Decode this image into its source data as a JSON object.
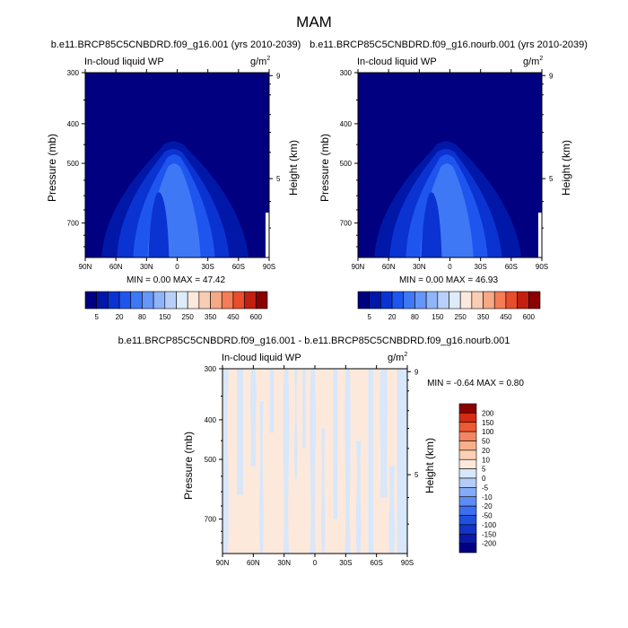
{
  "figure_title": "MAM",
  "palettes": {
    "abs": [
      "#000080",
      "#0017a8",
      "#0a33d2",
      "#1e55ee",
      "#3f78f5",
      "#6696f7",
      "#8fb4f8",
      "#b8d0f9",
      "#ddebfa",
      "#fde9dc",
      "#f9cdb3",
      "#f6a985",
      "#f47c56",
      "#e94d2c",
      "#c21f10",
      "#8b0000"
    ],
    "diff": [
      "#000080",
      "#0a1aa8",
      "#1234c8",
      "#2050e0",
      "#3c6ef0",
      "#5c8cf4",
      "#84abf7",
      "#b3ccf9",
      "#d8e7fa",
      "#fde9db",
      "#fbd0b4",
      "#f8b08a",
      "#f58560",
      "#ee5a34",
      "#d42c14",
      "#8b0000"
    ]
  },
  "panels": [
    {
      "subtitle": "b.e11.BRCP85C5CNBDRD.f09_g16.001 (yrs 2010-2039)",
      "left_label": "In-cloud liquid WP",
      "units": "g/m",
      "units_sup": "2",
      "ylabel": "Pressure (mb)",
      "ylabel_right": "Height (km)",
      "stats": "MIN =   0.00   MAX =  47.42"
    },
    {
      "subtitle": "b.e11.BRCP85C5CNBDRD.f09_g16.nourb.001 (yrs 2010-2039)",
      "left_label": "In-cloud liquid WP",
      "units": "g/m",
      "units_sup": "2",
      "ylabel": "Pressure (mb)",
      "ylabel_right": "Height (km)",
      "stats": "MIN =   0.00   MAX =  46.93"
    },
    {
      "subtitle": "b.e11.BRCP85C5CNBDRD.f09_g16.001 - b.e11.BRCP85C5CNBDRD.f09_g16.nourb.001",
      "left_label": "In-cloud liquid WP",
      "units": "g/m",
      "units_sup": "2",
      "ylabel": "Pressure (mb)",
      "ylabel_right": "Height (km)",
      "stats": "MIN =  -0.64   MAX =   0.80"
    }
  ],
  "chart_data": [
    {
      "type": "heatmap",
      "title": "b.e11.BRCP85C5CNBDRD.f09_g16.001 (yrs 2010-2039)",
      "variable": "In-cloud liquid WP",
      "units": "g/m2",
      "xlabel": "",
      "ylabel": "Pressure (mb)",
      "ylabel_right": "Height (km)",
      "xlim": [
        90,
        -90
      ],
      "ylim_pressure": [
        300,
        850
      ],
      "x_ticks": [
        "90N",
        "60N",
        "30N",
        "0",
        "30S",
        "60S",
        "90S"
      ],
      "x_tick_values": [
        90,
        60,
        30,
        0,
        -30,
        -60,
        -90
      ],
      "y_ticks": [
        "300",
        "400",
        "500",
        "700"
      ],
      "y_tick_values": [
        300,
        400,
        500,
        700
      ],
      "y_ticks_right": [
        "9",
        "5"
      ],
      "y_tick_right_values": [
        9,
        5
      ],
      "colorbar_levels": [
        5,
        10,
        20,
        40,
        80,
        100,
        150,
        200,
        250,
        300,
        350,
        400,
        450,
        500,
        600
      ],
      "colorbar_labels": [
        "5",
        "20",
        "80",
        "150",
        "250",
        "350",
        "450",
        "600"
      ],
      "min": 0.0,
      "max": 47.42
    },
    {
      "type": "heatmap",
      "title": "b.e11.BRCP85C5CNBDRD.f09_g16.nourb.001 (yrs 2010-2039)",
      "variable": "In-cloud liquid WP",
      "units": "g/m2",
      "xlabel": "",
      "ylabel": "Pressure (mb)",
      "ylabel_right": "Height (km)",
      "xlim": [
        90,
        -90
      ],
      "ylim_pressure": [
        300,
        850
      ],
      "x_ticks": [
        "90N",
        "60N",
        "30N",
        "0",
        "30S",
        "60S",
        "90S"
      ],
      "x_tick_values": [
        90,
        60,
        30,
        0,
        -30,
        -60,
        -90
      ],
      "y_ticks": [
        "300",
        "400",
        "500",
        "700"
      ],
      "y_tick_values": [
        300,
        400,
        500,
        700
      ],
      "y_ticks_right": [
        "9",
        "5"
      ],
      "y_tick_right_values": [
        9,
        5
      ],
      "colorbar_levels": [
        5,
        10,
        20,
        40,
        80,
        100,
        150,
        200,
        250,
        300,
        350,
        400,
        450,
        500,
        600
      ],
      "colorbar_labels": [
        "5",
        "20",
        "80",
        "150",
        "250",
        "350",
        "450",
        "600"
      ],
      "min": 0.0,
      "max": 46.93
    },
    {
      "type": "heatmap",
      "title": "b.e11.BRCP85C5CNBDRD.f09_g16.001 - b.e11.BRCP85C5CNBDRD.f09_g16.nourb.001",
      "variable": "In-cloud liquid WP",
      "units": "g/m2",
      "xlabel": "",
      "ylabel": "Pressure (mb)",
      "ylabel_right": "Height (km)",
      "xlim": [
        90,
        -90
      ],
      "ylim_pressure": [
        300,
        850
      ],
      "x_ticks": [
        "90N",
        "60N",
        "30N",
        "0",
        "30S",
        "60S",
        "90S"
      ],
      "x_tick_values": [
        90,
        60,
        30,
        0,
        -30,
        -60,
        -90
      ],
      "y_ticks": [
        "300",
        "400",
        "500",
        "700"
      ],
      "y_tick_values": [
        300,
        400,
        500,
        700
      ],
      "y_ticks_right": [
        "9",
        "5"
      ],
      "y_tick_right_values": [
        9,
        5
      ],
      "colorbar_levels": [
        -200,
        -150,
        -100,
        -50,
        -20,
        -10,
        -5,
        0,
        5,
        10,
        20,
        50,
        100,
        150,
        200
      ],
      "colorbar_labels": [
        "200",
        "150",
        "100",
        "50",
        "20",
        "10",
        "5",
        "0",
        "-5",
        "-10",
        "-20",
        "-50",
        "-100",
        "-150",
        "-200"
      ],
      "min": -0.64,
      "max": 0.8
    }
  ]
}
